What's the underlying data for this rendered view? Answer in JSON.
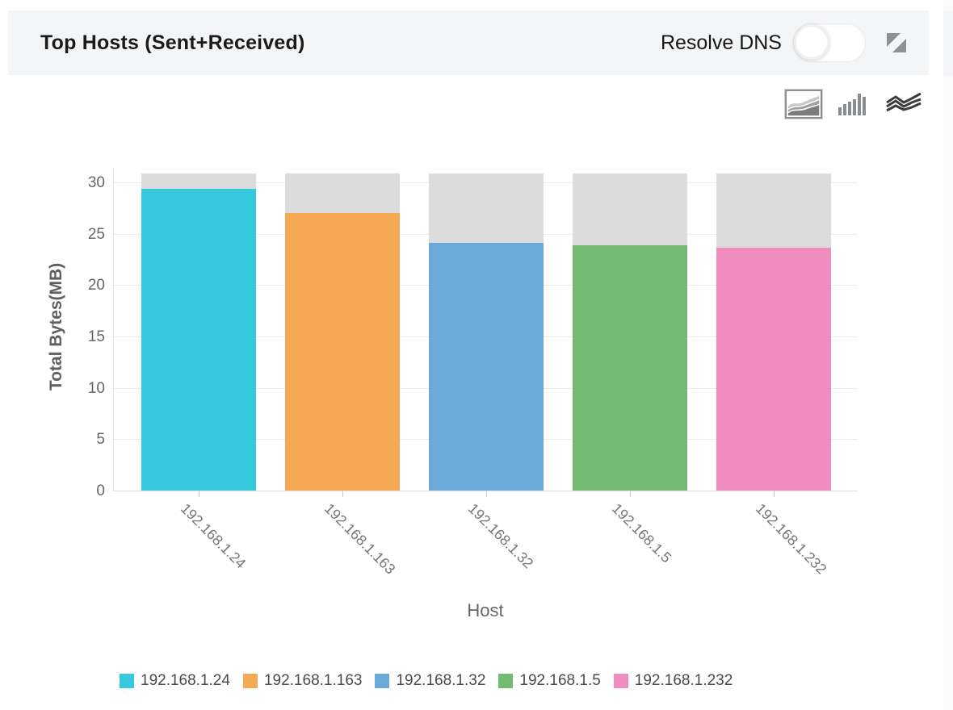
{
  "header": {
    "title": "Top Hosts (Sent+Received)",
    "resolve_dns_label": "Resolve DNS",
    "resolve_dns_state": "off"
  },
  "chart_type_selector": {
    "options": [
      {
        "name": "area",
        "selected": true
      },
      {
        "name": "bar",
        "selected": false
      },
      {
        "name": "stream",
        "selected": false
      }
    ]
  },
  "chart_data": {
    "type": "bar",
    "title": "Top Hosts (Sent+Received)",
    "xlabel": "Host",
    "ylabel": "Total Bytes(MB)",
    "ylim": [
      0,
      30
    ],
    "yticks": [
      0,
      5,
      10,
      15,
      20,
      25,
      30
    ],
    "grid": true,
    "legend_position": "bottom",
    "categories": [
      "192.168.1.24",
      "192.168.1.163",
      "192.168.1.32",
      "192.168.1.5",
      "192.168.1.232"
    ],
    "series": [
      {
        "name": "Total Bytes(MB)",
        "values": [
          29.4,
          27.0,
          24.1,
          23.9,
          23.6
        ]
      }
    ],
    "background_bar_value": 30.9,
    "background_bar_color": "#dcdcdc",
    "bar_colors": [
      "#36c9dd",
      "#f4a952",
      "#6ba9d8",
      "#71ba70",
      "#ee8dbe"
    ]
  },
  "legend": {
    "items": [
      {
        "label": "192.168.1.24",
        "color": "#36c9dd"
      },
      {
        "label": "192.168.1.163",
        "color": "#f4a952"
      },
      {
        "label": "192.168.1.32",
        "color": "#6ba9d8"
      },
      {
        "label": "192.168.1.5",
        "color": "#71ba70"
      },
      {
        "label": "192.168.1.232",
        "color": "#ee8dbe"
      }
    ]
  }
}
